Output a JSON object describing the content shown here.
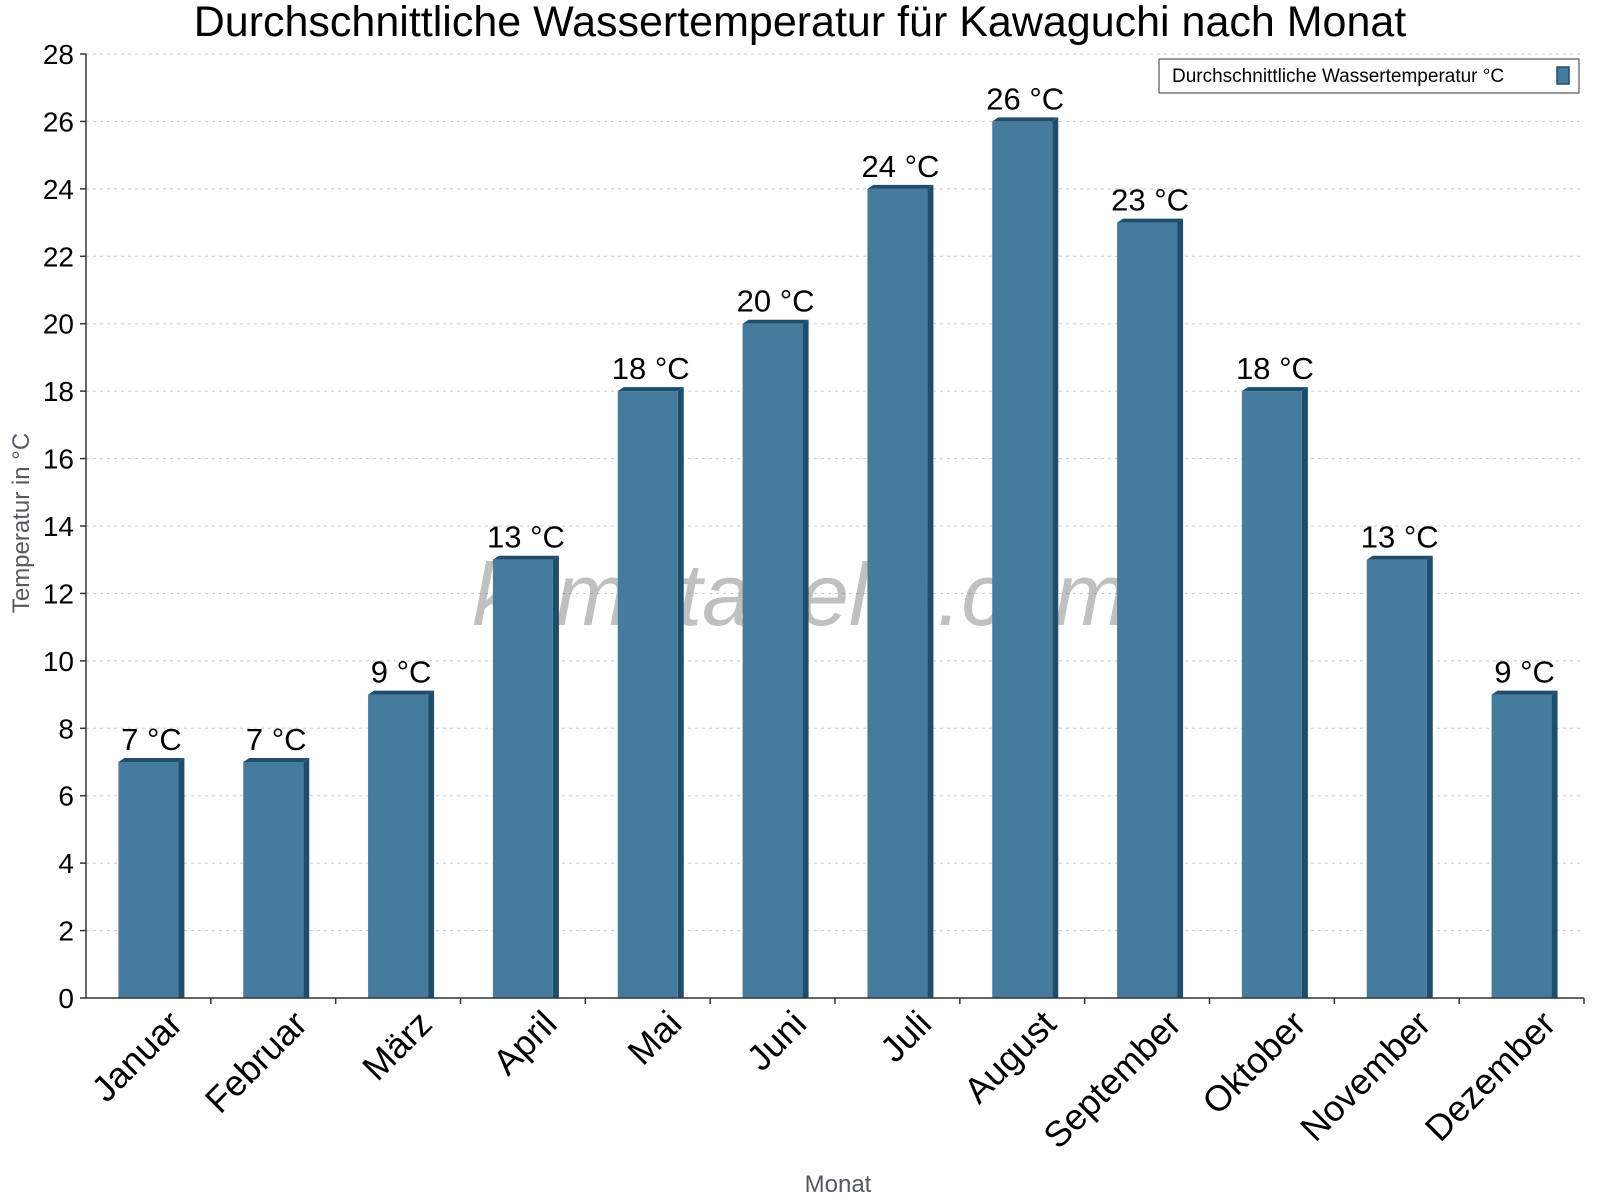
{
  "chart_data": {
    "type": "bar",
    "title": "Durchschnittliche Wassertemperatur für Kawaguchi nach Monat",
    "xlabel": "Monat",
    "ylabel": "Temperatur in °C",
    "categories": [
      "Januar",
      "Februar",
      "März",
      "April",
      "Mai",
      "Juni",
      "Juli",
      "August",
      "September",
      "Oktober",
      "November",
      "Dezember"
    ],
    "series": [
      {
        "name": "Durchschnittliche Wassertemperatur °C",
        "values": [
          7,
          7,
          9,
          13,
          18,
          20,
          24,
          26,
          23,
          18,
          13,
          9
        ],
        "data_labels": [
          "7 °C",
          "7 °C",
          "9 °C",
          "13 °C",
          "18 °C",
          "20 °C",
          "24 °C",
          "26 °C",
          "23 °C",
          "18 °C",
          "13 °C",
          "9 °C"
        ]
      }
    ],
    "ylim": [
      0,
      28
    ],
    "yticks": [
      0,
      2,
      4,
      6,
      8,
      10,
      12,
      14,
      16,
      18,
      20,
      22,
      24,
      26,
      28
    ],
    "grid": true,
    "legend": "top-right"
  },
  "watermark": "klimatabelle.com",
  "colors": {
    "bar": "#457b9d",
    "bar_side": "#1d4e6e",
    "grid": "#c8c8c8",
    "axis": "#333333"
  }
}
